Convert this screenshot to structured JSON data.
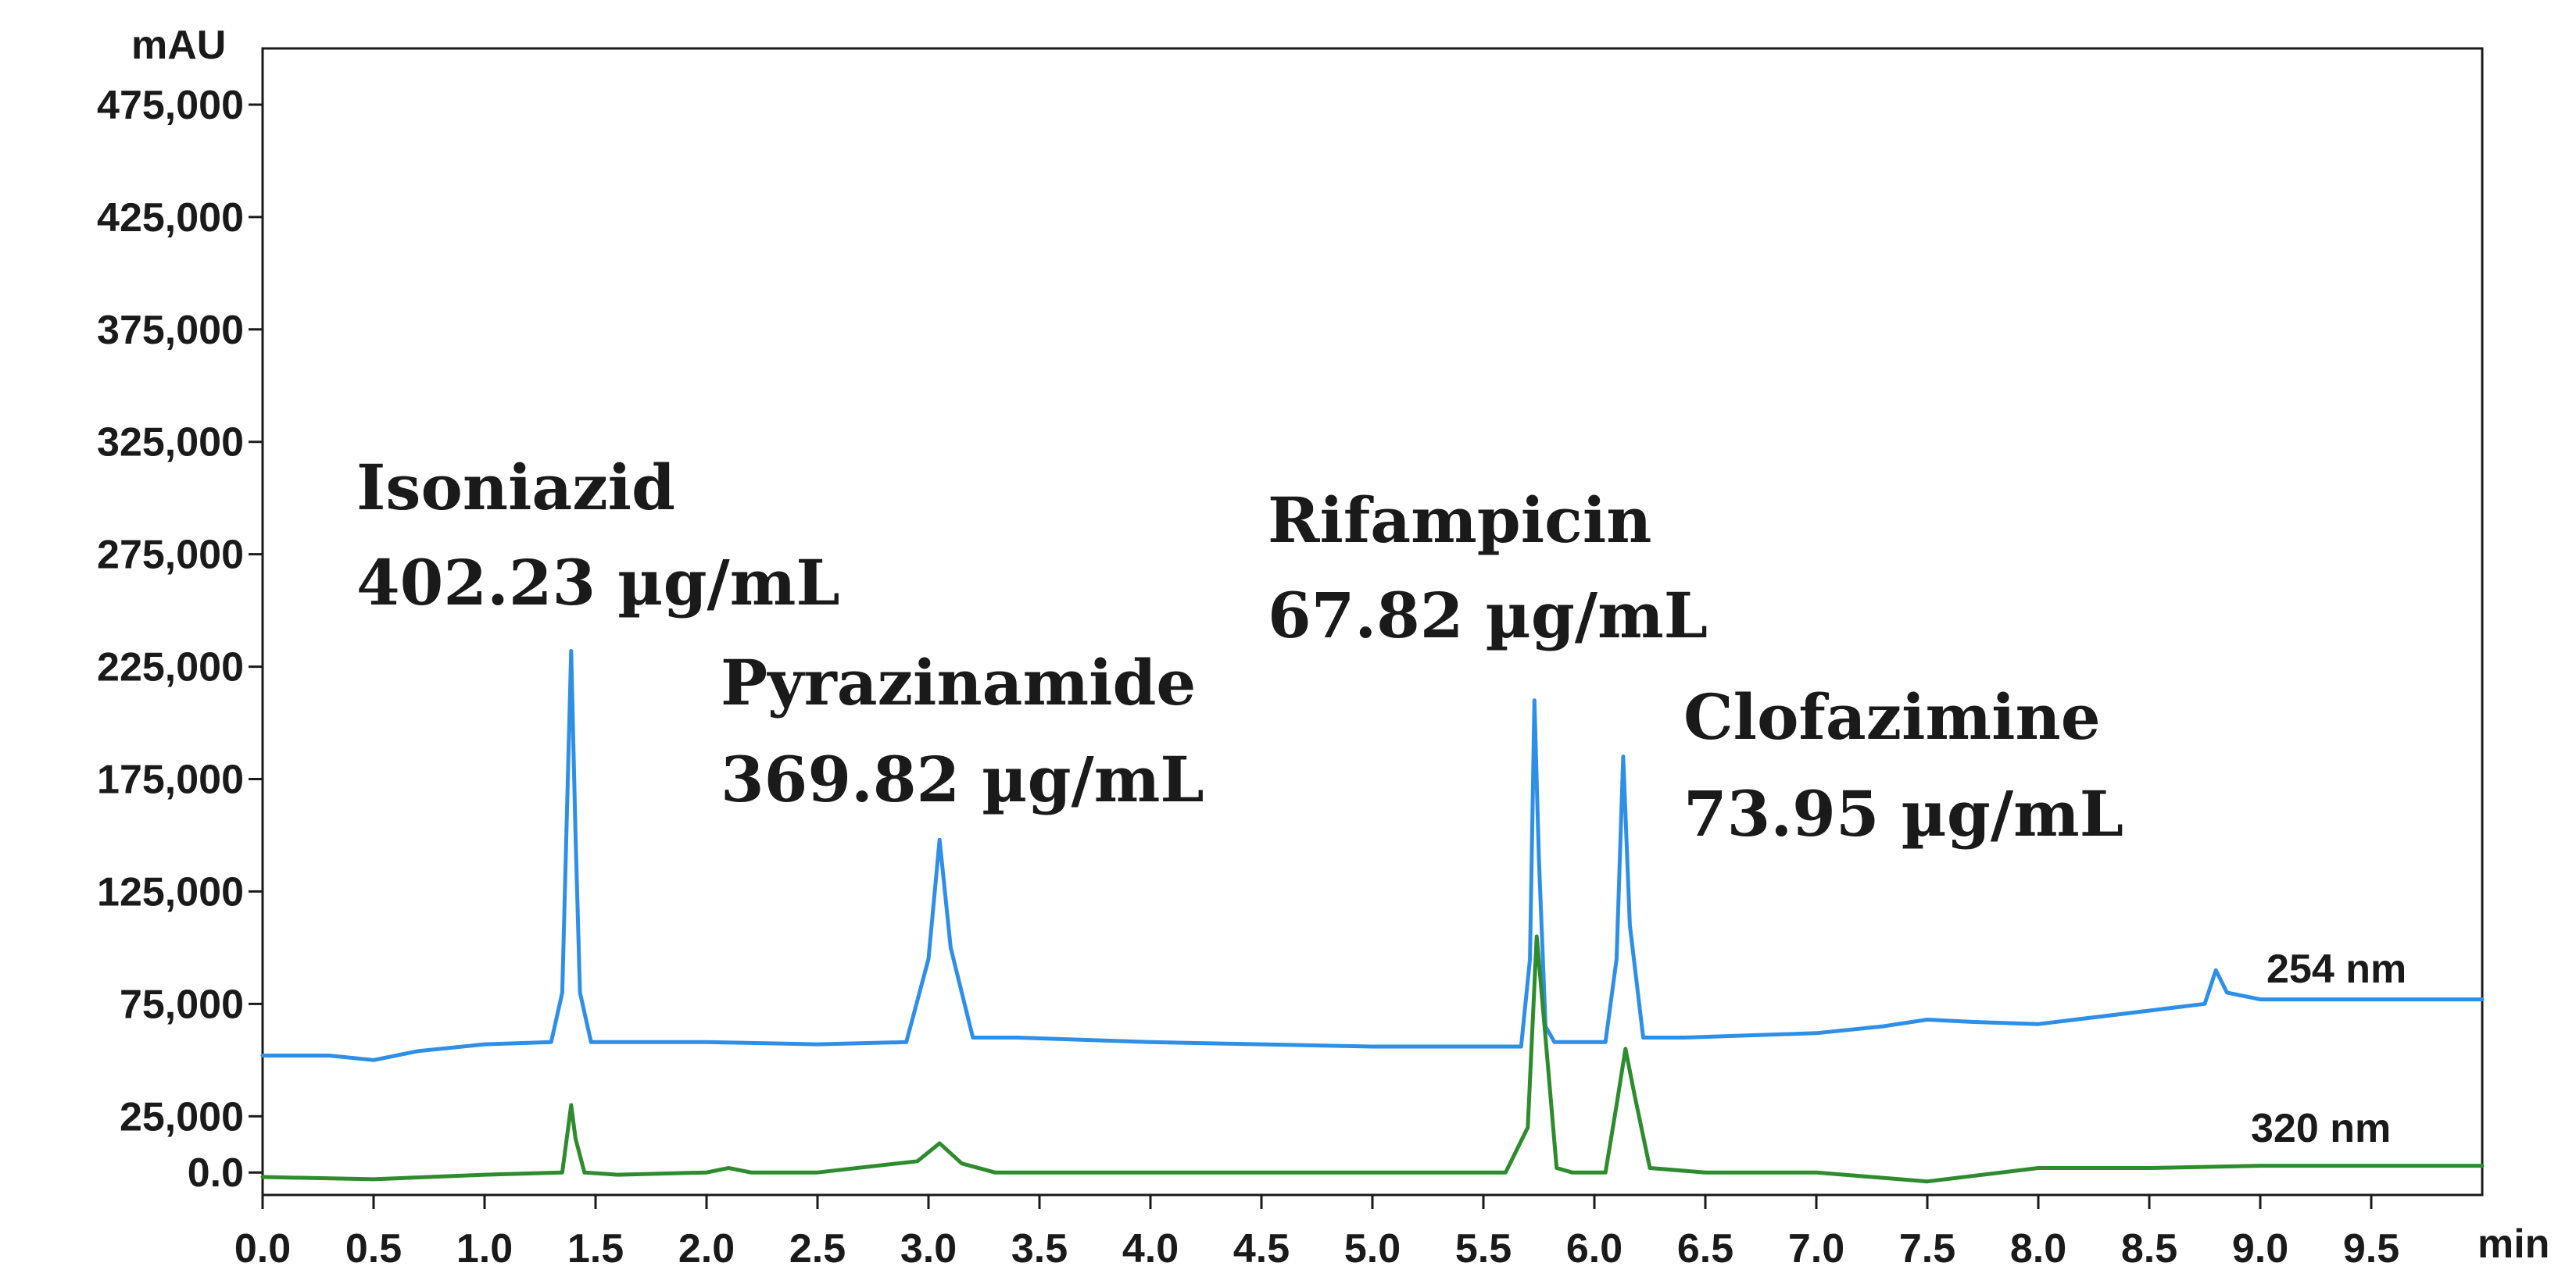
{
  "chart_data": {
    "type": "line",
    "ylabel": "mAU",
    "xlabel": "min",
    "xlim": [
      0.0,
      10.0
    ],
    "ylim": [
      -10000,
      500000
    ],
    "x_ticks": [
      "0.0",
      "0.5",
      "1.0",
      "1.5",
      "2.0",
      "2.5",
      "3.0",
      "3.5",
      "4.0",
      "4.5",
      "5.0",
      "5.5",
      "6.0",
      "6.5",
      "7.0",
      "7.5",
      "8.0",
      "8.5",
      "9.0",
      "9.5"
    ],
    "y_ticks": [
      "0.0",
      "25,000",
      "75,000",
      "125,000",
      "175,000",
      "225,000",
      "275,000",
      "325,000",
      "375,000",
      "425,000",
      "475,000"
    ],
    "grid": false,
    "series": [
      {
        "name": "254 nm",
        "color": "#2f8fe6",
        "x": [
          0.0,
          0.3,
          0.5,
          0.7,
          1.0,
          1.3,
          1.35,
          1.39,
          1.41,
          1.43,
          1.48,
          1.6,
          2.0,
          2.5,
          2.9,
          3.0,
          3.05,
          3.1,
          3.2,
          3.4,
          4.0,
          4.5,
          5.0,
          5.5,
          5.67,
          5.71,
          5.73,
          5.75,
          5.78,
          5.82,
          5.9,
          6.05,
          6.1,
          6.13,
          6.16,
          6.22,
          6.4,
          7.0,
          7.3,
          7.5,
          7.7,
          8.0,
          8.5,
          8.75,
          8.8,
          8.85,
          9.0,
          9.5,
          10.0
        ],
        "y": [
          52000,
          52000,
          50000,
          54000,
          57000,
          58000,
          80000,
          232000,
          150000,
          80000,
          58000,
          58000,
          58000,
          57000,
          58000,
          95000,
          148000,
          100000,
          60000,
          60000,
          58000,
          57000,
          56000,
          56000,
          56000,
          95000,
          210000,
          140000,
          65000,
          58000,
          58000,
          58000,
          95000,
          185000,
          110000,
          60000,
          60000,
          62000,
          65000,
          68000,
          67000,
          66000,
          72000,
          75000,
          90000,
          80000,
          77000,
          77000,
          77000
        ]
      },
      {
        "name": "320 nm",
        "color": "#2e8b2e",
        "x": [
          0.0,
          0.5,
          1.0,
          1.35,
          1.39,
          1.41,
          1.45,
          1.6,
          2.0,
          2.1,
          2.2,
          2.5,
          2.95,
          3.05,
          3.15,
          3.3,
          4.0,
          5.0,
          5.6,
          5.7,
          5.74,
          5.78,
          5.83,
          5.9,
          6.05,
          6.1,
          6.14,
          6.18,
          6.25,
          6.5,
          7.0,
          7.5,
          8.0,
          8.5,
          9.0,
          9.5,
          10.0
        ],
        "y": [
          -2000,
          -3000,
          -1000,
          0,
          30000,
          15000,
          0,
          -1000,
          0,
          2000,
          0,
          0,
          5000,
          13000,
          4000,
          0,
          0,
          0,
          0,
          20000,
          105000,
          60000,
          2000,
          0,
          0,
          30000,
          55000,
          35000,
          2000,
          0,
          0,
          -4000,
          2000,
          2000,
          3000,
          3000,
          3000
        ]
      }
    ],
    "annotations": [
      {
        "compound": "Isoniazid",
        "concentration": "402.23 µg/mL"
      },
      {
        "compound": "Pyrazinamide",
        "concentration": "369.82 µg/mL"
      },
      {
        "compound": "Rifampicin",
        "concentration": "67.82 µg/mL"
      },
      {
        "compound": "Clofazimine",
        "concentration": "73.95 µg/mL"
      }
    ]
  }
}
